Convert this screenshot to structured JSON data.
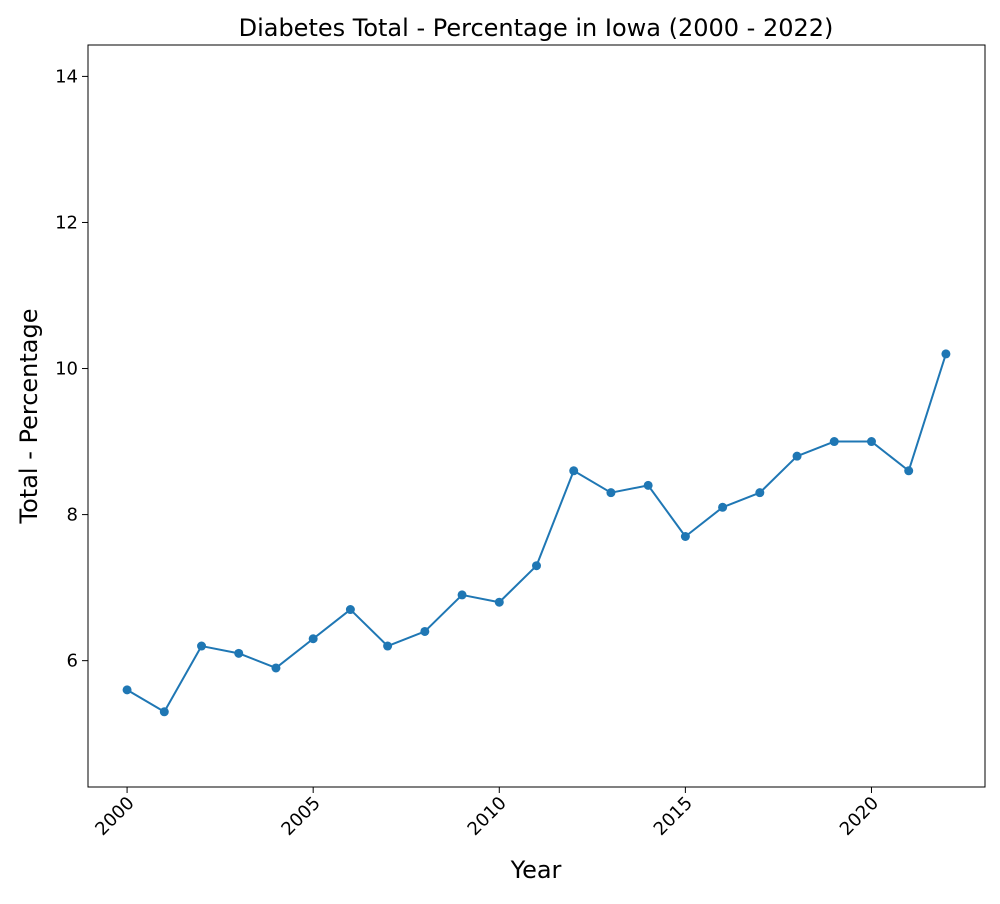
{
  "chart_data": {
    "type": "line",
    "title": "Diabetes Total - Percentage in Iowa (2000 - 2022)",
    "xlabel": "Year",
    "ylabel": "Total - Percentage",
    "x": [
      2000,
      2001,
      2002,
      2003,
      2004,
      2005,
      2006,
      2007,
      2008,
      2009,
      2010,
      2011,
      2012,
      2013,
      2014,
      2015,
      2016,
      2017,
      2018,
      2019,
      2020,
      2021,
      2022
    ],
    "series": [
      {
        "values": [
          5.6,
          5.3,
          6.2,
          6.1,
          5.9,
          6.3,
          6.7,
          6.2,
          6.4,
          6.9,
          6.8,
          7.3,
          8.6,
          8.3,
          8.4,
          7.7,
          8.1,
          8.3,
          8.8,
          9.0,
          9.0,
          8.6,
          10.2
        ],
        "color": "#1f77b4"
      }
    ],
    "xlim": [
      1998.95,
      2023.05
    ],
    "ylim": [
      4.27,
      14.43
    ],
    "xticks": [
      "2000",
      "2005",
      "2010",
      "2015",
      "2020"
    ],
    "yticks": [
      "6",
      "8",
      "10",
      "12",
      "14"
    ],
    "xtick_rotation": 45,
    "grid": false,
    "markers": true
  }
}
